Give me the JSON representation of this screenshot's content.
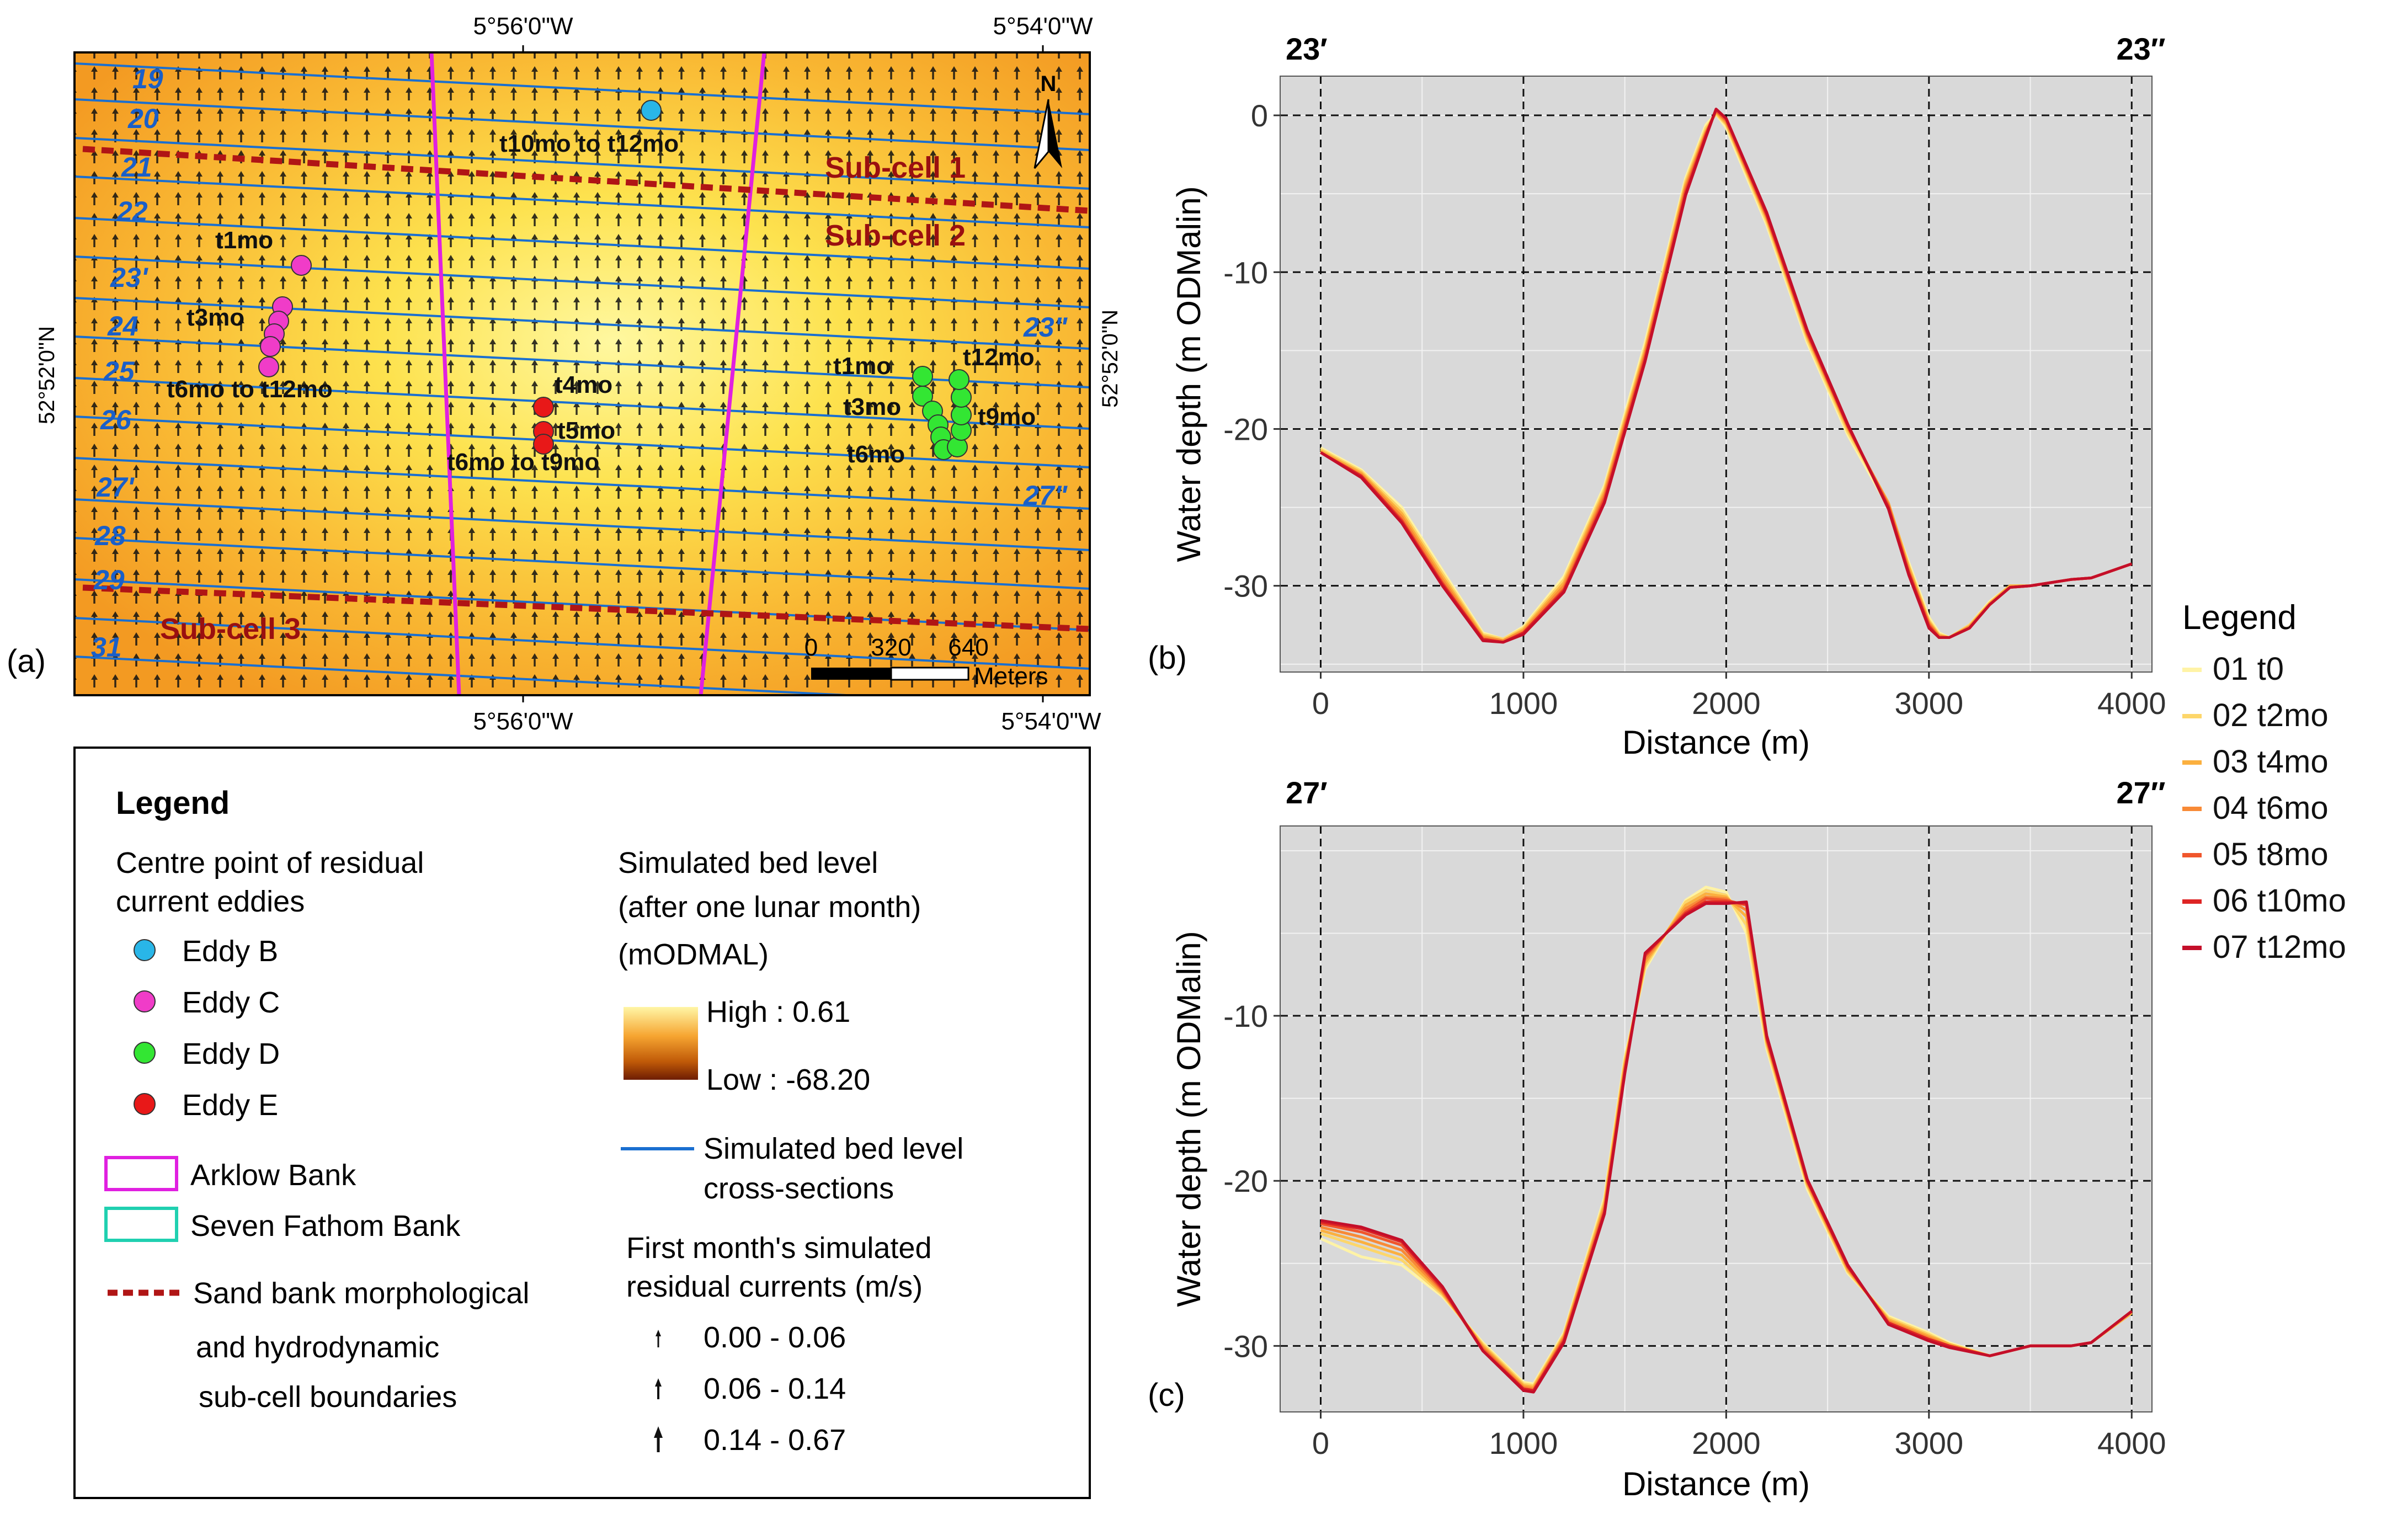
{
  "map": {
    "panel_label": "(a)",
    "top_ticks": [
      "5°56'0\"W",
      "5°54'0\"W"
    ],
    "bottom_ticks": [
      "5°56'0\"W",
      "5°54'0\"W"
    ],
    "left_tick": "52°52'0\"N",
    "right_tick": "52°52'0\"N",
    "north_label": "N",
    "scale": {
      "labels": [
        "0",
        "320",
        "640"
      ],
      "unit": "Meters"
    },
    "subcell_labels": [
      "Sub-cell 1",
      "Sub-cell 2",
      "Sub-cell 3"
    ],
    "section_labels": [
      "19",
      "20",
      "21",
      "22",
      "23'",
      "24",
      "25",
      "26",
      "27'",
      "28",
      "29",
      "31",
      "23\"",
      "27\""
    ],
    "eddy_labels": {
      "B": [
        "t10mo to t12mo"
      ],
      "C": [
        "t1mo",
        "t3mo",
        "t6mo to t12mo"
      ],
      "D": [
        "t1mo",
        "t12mo",
        "t3mo",
        "t9mo",
        "t6mo"
      ],
      "E": [
        "t4mo",
        "t5mo",
        "t6mo to t9mo"
      ]
    }
  },
  "legend_box": {
    "title": "Legend",
    "centre_heading": [
      "Centre point of residual",
      "current eddies"
    ],
    "eddies": [
      {
        "label": "Eddy B",
        "color": "#29b6e8"
      },
      {
        "label": "Eddy C",
        "color": "#f03cc8"
      },
      {
        "label": "Eddy D",
        "color": "#33e633"
      },
      {
        "label": "Eddy E",
        "color": "#e81818"
      }
    ],
    "banks": [
      {
        "label": "Arklow Bank",
        "color": "#e020e0"
      },
      {
        "label": "Seven Fathom Bank",
        "color": "#20d0b0"
      }
    ],
    "boundary_label": [
      "Sand bank morphological",
      "and hydrodynamic",
      "sub-cell boundaries"
    ],
    "bed_heading": [
      "Simulated bed level",
      "(after one lunar month)",
      "(mODMAL)"
    ],
    "bed_high": "High : 0.61",
    "bed_low": "Low : -68.20",
    "cross_label": [
      "Simulated bed level",
      "cross-sections"
    ],
    "currents_heading": [
      "First month's simulated",
      "residual currents (m/s)"
    ],
    "currents": [
      "0.00 - 0.06",
      "0.06 - 0.14",
      "0.14 - 0.67"
    ]
  },
  "profile_legend": {
    "title": "Legend",
    "items": [
      {
        "label": "01 t0",
        "color": "#fff3a6"
      },
      {
        "label": "02 t2mo",
        "color": "#fdd66a"
      },
      {
        "label": "03 t4mo",
        "color": "#fbb03f"
      },
      {
        "label": "04 t6mo",
        "color": "#f88a36"
      },
      {
        "label": "05 t8mo",
        "color": "#f0562c"
      },
      {
        "label": "06 t10mo",
        "color": "#de2424"
      },
      {
        "label": "07 t12mo",
        "color": "#c40f2a"
      }
    ]
  },
  "chart_data": [
    {
      "type": "line",
      "panel": "(b)",
      "start_label": "23′",
      "end_label": "23″",
      "xlabel": "Distance (m)",
      "ylabel": "Water depth (m ODMalin)",
      "xlim": [
        -200,
        4100
      ],
      "ylim": [
        -35.5,
        2.5
      ],
      "xticks": [
        0,
        1000,
        2000,
        3000,
        4000
      ],
      "yticks": [
        0,
        -10,
        -20,
        -30
      ],
      "x": [
        0,
        200,
        400,
        600,
        800,
        900,
        1000,
        1200,
        1400,
        1600,
        1800,
        1900,
        1950,
        2000,
        2200,
        2400,
        2600,
        2800,
        2900,
        3000,
        3050,
        3100,
        3200,
        3300,
        3400,
        3500,
        3600,
        3700,
        3800,
        4000
      ],
      "series": [
        {
          "name": "01 t0",
          "values": [
            -21.2,
            -22.6,
            -25.0,
            -29.0,
            -33.0,
            -33.4,
            -32.6,
            -29.4,
            -23.6,
            -14.5,
            -4.0,
            -0.6,
            0.1,
            -0.8,
            -7.0,
            -14.5,
            -20.4,
            -25.0,
            -28.5,
            -32.0,
            -33.0,
            -33.3,
            -32.5,
            -31.0,
            -30.0,
            -30.0,
            -29.8,
            -29.6,
            -29.5,
            -28.6
          ]
        },
        {
          "name": "02 t2mo",
          "values": [
            -21.3,
            -22.7,
            -25.2,
            -29.2,
            -33.1,
            -33.4,
            -32.7,
            -29.6,
            -23.8,
            -14.8,
            -4.2,
            -0.8,
            0.1,
            -0.6,
            -6.8,
            -14.3,
            -20.2,
            -24.8,
            -28.7,
            -32.2,
            -33.1,
            -33.3,
            -32.5,
            -31.1,
            -30.0,
            -30.0,
            -29.8,
            -29.6,
            -29.5,
            -28.6
          ]
        },
        {
          "name": "03 t4mo",
          "values": [
            -21.4,
            -22.8,
            -25.4,
            -29.4,
            -33.2,
            -33.5,
            -32.8,
            -29.8,
            -24.0,
            -15.0,
            -4.4,
            -1.0,
            0.2,
            -0.5,
            -6.6,
            -14.1,
            -20.0,
            -24.7,
            -28.8,
            -32.3,
            -33.2,
            -33.3,
            -32.6,
            -31.1,
            -30.0,
            -30.0,
            -29.8,
            -29.6,
            -29.5,
            -28.6
          ]
        },
        {
          "name": "04 t6mo",
          "values": [
            -21.5,
            -22.9,
            -25.6,
            -29.6,
            -33.3,
            -33.5,
            -32.9,
            -30.0,
            -24.2,
            -15.2,
            -4.6,
            -1.1,
            0.3,
            -0.4,
            -6.5,
            -14.0,
            -19.9,
            -24.8,
            -29.0,
            -32.4,
            -33.2,
            -33.3,
            -32.6,
            -31.2,
            -30.1,
            -30.0,
            -29.8,
            -29.6,
            -29.5,
            -28.6
          ]
        },
        {
          "name": "05 t8mo",
          "values": [
            -21.5,
            -23.0,
            -25.8,
            -29.8,
            -33.4,
            -33.6,
            -33.0,
            -30.2,
            -24.4,
            -15.4,
            -4.8,
            -1.2,
            0.3,
            -0.3,
            -6.4,
            -13.9,
            -19.8,
            -24.9,
            -29.1,
            -32.5,
            -33.3,
            -33.3,
            -32.7,
            -31.2,
            -30.1,
            -30.0,
            -29.8,
            -29.6,
            -29.5,
            -28.6
          ]
        },
        {
          "name": "06 t10mo",
          "values": [
            -21.5,
            -23.0,
            -25.9,
            -29.9,
            -33.4,
            -33.6,
            -33.0,
            -30.3,
            -24.6,
            -15.6,
            -5.0,
            -1.3,
            0.4,
            -0.2,
            -6.3,
            -13.8,
            -19.8,
            -25.0,
            -29.2,
            -32.6,
            -33.3,
            -33.3,
            -32.7,
            -31.2,
            -30.1,
            -30.0,
            -29.8,
            -29.6,
            -29.5,
            -28.6
          ]
        },
        {
          "name": "07 t12mo",
          "values": [
            -21.5,
            -23.1,
            -26.0,
            -30.0,
            -33.5,
            -33.6,
            -33.1,
            -30.4,
            -24.7,
            -15.7,
            -5.1,
            -1.4,
            0.4,
            -0.2,
            -6.2,
            -13.7,
            -19.7,
            -25.1,
            -29.3,
            -32.7,
            -33.3,
            -33.3,
            -32.7,
            -31.2,
            -30.1,
            -30.0,
            -29.8,
            -29.6,
            -29.5,
            -28.6
          ]
        }
      ]
    },
    {
      "type": "line",
      "panel": "(c)",
      "start_label": "27′",
      "end_label": "27″",
      "xlabel": "Distance (m)",
      "ylabel": "Water depth (m ODMalin)",
      "xlim": [
        -200,
        4100
      ],
      "ylim": [
        -34,
        1.5
      ],
      "xticks": [
        0,
        1000,
        2000,
        3000,
        4000
      ],
      "yticks": [
        -10,
        -20,
        -30
      ],
      "x": [
        0,
        200,
        400,
        600,
        800,
        1000,
        1050,
        1200,
        1400,
        1500,
        1600,
        1800,
        1900,
        2000,
        2100,
        2200,
        2400,
        2600,
        2800,
        3000,
        3100,
        3300,
        3500,
        3700,
        3800,
        4000
      ],
      "series": [
        {
          "name": "01 t0",
          "values": [
            -23.5,
            -24.6,
            -25.1,
            -27.0,
            -29.8,
            -32.2,
            -32.3,
            -29.2,
            -21.0,
            -12.5,
            -7.2,
            -3.0,
            -2.2,
            -2.5,
            -5.0,
            -12.0,
            -20.5,
            -25.6,
            -28.2,
            -29.2,
            -29.8,
            -30.6,
            -30.0,
            -30.0,
            -29.8,
            -28.0
          ]
        },
        {
          "name": "02 t2mo",
          "values": [
            -23.2,
            -24.0,
            -24.8,
            -26.9,
            -29.9,
            -32.3,
            -32.4,
            -29.3,
            -21.2,
            -12.7,
            -7.0,
            -3.1,
            -2.4,
            -2.7,
            -4.5,
            -11.8,
            -20.3,
            -25.5,
            -28.3,
            -29.3,
            -29.9,
            -30.6,
            -30.0,
            -30.0,
            -29.8,
            -28.0
          ]
        },
        {
          "name": "03 t4mo",
          "values": [
            -23.0,
            -23.7,
            -24.5,
            -26.8,
            -30.0,
            -32.4,
            -32.5,
            -29.4,
            -21.4,
            -12.9,
            -6.8,
            -3.3,
            -2.6,
            -2.8,
            -4.0,
            -11.6,
            -20.2,
            -25.4,
            -28.4,
            -29.4,
            -29.9,
            -30.6,
            -30.0,
            -30.0,
            -29.8,
            -28.0
          ]
        },
        {
          "name": "04 t6mo",
          "values": [
            -22.8,
            -23.4,
            -24.2,
            -26.7,
            -30.1,
            -32.5,
            -32.6,
            -29.5,
            -21.6,
            -13.1,
            -6.6,
            -3.5,
            -2.8,
            -2.9,
            -3.6,
            -11.5,
            -20.1,
            -25.3,
            -28.5,
            -29.5,
            -30.0,
            -30.6,
            -30.0,
            -30.0,
            -29.8,
            -27.9
          ]
        },
        {
          "name": "05 t8mo",
          "values": [
            -22.6,
            -23.1,
            -23.9,
            -26.6,
            -30.2,
            -32.6,
            -32.7,
            -29.6,
            -21.8,
            -13.3,
            -6.4,
            -3.7,
            -2.9,
            -3.0,
            -3.3,
            -11.4,
            -20.0,
            -25.2,
            -28.6,
            -29.6,
            -30.0,
            -30.6,
            -30.0,
            -30.0,
            -29.8,
            -27.9
          ]
        },
        {
          "name": "06 t10mo",
          "values": [
            -22.5,
            -22.9,
            -23.7,
            -26.5,
            -30.3,
            -32.6,
            -32.7,
            -29.7,
            -21.9,
            -13.4,
            -6.3,
            -3.8,
            -3.1,
            -3.1,
            -3.2,
            -11.3,
            -20.0,
            -25.2,
            -28.6,
            -29.6,
            -30.0,
            -30.6,
            -30.0,
            -30.0,
            -29.8,
            -27.9
          ]
        },
        {
          "name": "07 t12mo",
          "values": [
            -22.4,
            -22.8,
            -23.6,
            -26.4,
            -30.3,
            -32.7,
            -32.8,
            -29.8,
            -22.0,
            -13.5,
            -6.2,
            -3.9,
            -3.2,
            -3.2,
            -3.1,
            -11.2,
            -19.9,
            -25.1,
            -28.7,
            -29.7,
            -30.1,
            -30.6,
            -30.0,
            -30.0,
            -29.8,
            -27.9
          ]
        }
      ]
    }
  ]
}
